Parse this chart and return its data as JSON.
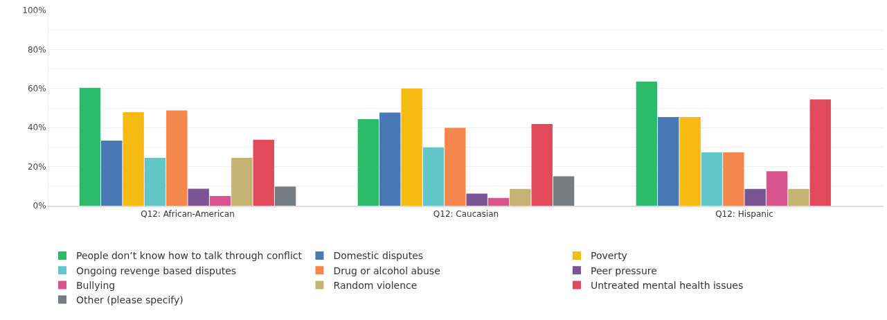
{
  "chart_data": {
    "type": "bar",
    "categories": [
      "Q12: African-American",
      "Q12: Caucasian",
      "Q12: Hispanic"
    ],
    "series": [
      {
        "name": "People don’t know how to talk through conflict",
        "color": "#2dba6b",
        "values": [
          60.4,
          44.3,
          63.6
        ]
      },
      {
        "name": "Domestic disputes",
        "color": "#4a78b5",
        "values": [
          33.3,
          47.7,
          45.4
        ]
      },
      {
        "name": "Poverty",
        "color": "#f5bb12",
        "values": [
          47.9,
          60,
          45.4
        ]
      },
      {
        "name": "Ongoing revenge based disputes",
        "color": "#63c6c9",
        "values": [
          24.6,
          29.9,
          27.3
        ]
      },
      {
        "name": "Drug or alcohol abuse",
        "color": "#f4874b",
        "values": [
          48.8,
          39.9,
          27.3
        ]
      },
      {
        "name": "Peer pressure",
        "color": "#7a5593",
        "values": [
          8.7,
          6.2,
          8.6
        ]
      },
      {
        "name": "Bullying",
        "color": "#d9548f",
        "values": [
          5,
          4,
          17.6
        ]
      },
      {
        "name": "Random violence",
        "color": "#c4b373",
        "values": [
          24.6,
          8.6,
          8.6
        ]
      },
      {
        "name": "Untreated mental health issues",
        "color": "#e04a5a",
        "values": [
          33.8,
          41.8,
          54.4
        ]
      },
      {
        "name": "Other (please specify)",
        "color": "#757d82",
        "values": [
          9.8,
          15.1,
          0
        ]
      }
    ],
    "ylim": [
      0,
      100
    ],
    "yticks": [
      {
        "value": 0,
        "label": "0%"
      },
      {
        "value": 10,
        "label": null
      },
      {
        "value": 20,
        "label": "20%"
      },
      {
        "value": 30,
        "label": null
      },
      {
        "value": 40,
        "label": "40%"
      },
      {
        "value": 50,
        "label": null
      },
      {
        "value": 60,
        "label": "60%"
      },
      {
        "value": 70,
        "label": null
      },
      {
        "value": 80,
        "label": "80%"
      },
      {
        "value": 90,
        "label": null
      },
      {
        "value": 100,
        "label": "100%"
      }
    ],
    "grid": "y",
    "legend": "bottom"
  }
}
